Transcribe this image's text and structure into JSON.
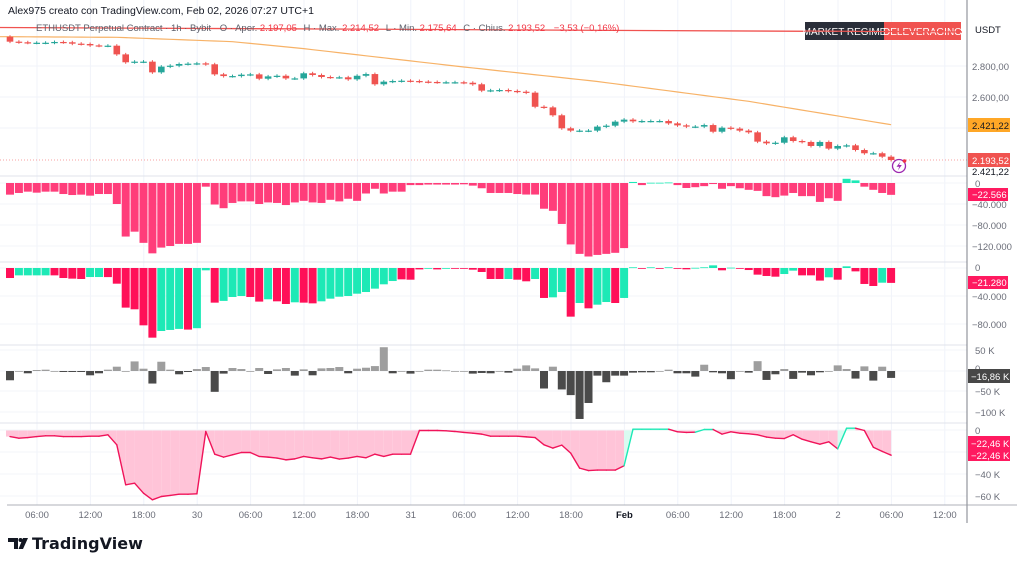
{
  "header": {
    "attribution": "Alex975 creato con TradingView.com, Feb 02, 2026 07:27 UTC+1"
  },
  "legend": {
    "symbol": "ETHUSDT Perpetual Contract · 1h · Bybit",
    "open_label": "O · Aper.",
    "open": "2.197,05",
    "high_label": "H · Max.",
    "high": "2.214,52",
    "low_label": "L · Min.",
    "low": "2.175,64",
    "close_label": "C · Chius.",
    "close": "2.193,52",
    "change": "−3,53 (−0,16%)"
  },
  "regime": {
    "label": "MARKET REGIME",
    "value": "DELEVERAGING",
    "label_color": "#2a2e39",
    "value_color": "#f05350"
  },
  "price_axis": {
    "currency": "USDT",
    "ticks": [
      "2.800,00",
      "2.600,00"
    ],
    "ma_badge": "2.421,22",
    "last_badge": "2.193,52",
    "extra_value": "2.421,22"
  },
  "pane2_axis": {
    "ticks": [
      "0",
      "−40.000",
      "−80.000",
      "−120.000"
    ],
    "badge": "−22.566"
  },
  "pane3_axis": {
    "ticks": [
      "0",
      "−40.000",
      "−80.000"
    ],
    "badge": "−21.280"
  },
  "pane4_axis": {
    "ticks": [
      "50 K",
      "0",
      "−50 K",
      "−100 K"
    ],
    "badge": "−16,86 K"
  },
  "pane5_axis": {
    "ticks": [
      "0",
      "−40 K",
      "−60 K"
    ],
    "badges": [
      "−22,46 K",
      "−22,46 K"
    ]
  },
  "time_axis": {
    "labels": [
      "06:00",
      "12:00",
      "18:00",
      "30",
      "06:00",
      "12:00",
      "18:00",
      "31",
      "06:00",
      "12:00",
      "18:00",
      "Feb",
      "06:00",
      "12:00",
      "18:00",
      "2",
      "06:00",
      "12:00"
    ]
  },
  "logo": {
    "text": "TradingView"
  },
  "colors": {
    "up": "#26a69a",
    "down": "#ef5350",
    "ma": "#f7b267",
    "trendline": "#f05350",
    "hist_pink": "#ff3d7a",
    "flow_red": "#ff1058",
    "flow_teal": "#1de9b6",
    "vol_light": "#9e9e9e",
    "vol_dark": "#4a4a4a",
    "line_red": "#f0145a",
    "fill_pink": "#ffc4d8",
    "fill_teal": "#d9fbf1"
  },
  "icons": {
    "alert": "lightning-bolt-icon"
  },
  "chart_data": [
    {
      "type": "candlestick",
      "title": "ETHUSDT Perpetual Contract · 1h · Bybit",
      "ylabel": "USDT",
      "ylim": [
        2140,
        3000
      ],
      "first_open": 2989,
      "close": [
        2957,
        2953,
        2950,
        2950,
        2950,
        2955,
        2953,
        2944,
        2942,
        2933,
        2931,
        2931,
        2875,
        2824,
        2828,
        2828,
        2759,
        2796,
        2802,
        2813,
        2815,
        2817,
        2811,
        2746,
        2735,
        2735,
        2744,
        2746,
        2718,
        2733,
        2737,
        2720,
        2720,
        2753,
        2742,
        2729,
        2727,
        2727,
        2714,
        2737,
        2748,
        2682,
        2699,
        2703,
        2705,
        2703,
        2699,
        2697,
        2695,
        2695,
        2695,
        2692,
        2682,
        2641,
        2643,
        2645,
        2639,
        2634,
        2628,
        2537,
        2533,
        2482,
        2398,
        2383,
        2383,
        2383,
        2409,
        2415,
        2441,
        2454,
        2443,
        2445,
        2445,
        2445,
        2430,
        2417,
        2409,
        2409,
        2419,
        2376,
        2402,
        2396,
        2383,
        2372,
        2312,
        2301,
        2305,
        2340,
        2316,
        2310,
        2284,
        2310,
        2267,
        2284,
        2288,
        2258,
        2237,
        2237,
        2215,
        2193.52
      ],
      "moving_average": [
        {
          "bar": 0,
          "value": 2989
        },
        {
          "bar": 12,
          "value": 2985
        },
        {
          "bar": 25,
          "value": 2957
        },
        {
          "bar": 33,
          "value": 2912
        },
        {
          "bar": 50,
          "value": 2800
        },
        {
          "bar": 66,
          "value": 2700
        },
        {
          "bar": 83,
          "value": 2572
        },
        {
          "bar": 99,
          "value": 2421.22
        }
      ],
      "last_price": 2193.52
    },
    {
      "type": "bar",
      "ylim": [
        -150000,
        10000
      ],
      "values": [
        -22200,
        -19000,
        -16500,
        -18400,
        -16500,
        -16500,
        -21000,
        -22900,
        -22200,
        -24100,
        -21000,
        -21000,
        -40000,
        -102000,
        -92700,
        -114000,
        -134000,
        -123000,
        -120000,
        -116000,
        -116000,
        -114000,
        -7000,
        -41000,
        -48000,
        -38000,
        -35000,
        -35000,
        -40000,
        -37000,
        -38000,
        -42000,
        -37000,
        -34000,
        -37000,
        -38000,
        -32000,
        -35000,
        -30000,
        -34000,
        -20000,
        -11000,
        -20000,
        -16500,
        -16500,
        -4000,
        -4000,
        -3000,
        -3000,
        -3000,
        -3000,
        -2500,
        -5000,
        -10000,
        -19000,
        -19000,
        -19000,
        -21000,
        -22000,
        -22000,
        -49000,
        -53000,
        -78000,
        -117000,
        -135000,
        -140000,
        -137000,
        -135000,
        -133000,
        -124000,
        2000,
        -4000,
        500,
        500,
        1000,
        -4000,
        -9500,
        -8000,
        -6000,
        -2000,
        -11000,
        -6000,
        -10000,
        -13000,
        -15000,
        -25000,
        -27000,
        -24000,
        -19000,
        -25000,
        -25000,
        -36000,
        -29000,
        -34000,
        8000,
        5000,
        -7000,
        -13000,
        -19000,
        -22566
      ]
    },
    {
      "type": "bar",
      "ylim": [
        -110000,
        5000
      ],
      "values": [
        -14300,
        -10500,
        -10500,
        -10500,
        -10500,
        -10500,
        -14300,
        -15200,
        -15700,
        -12900,
        -12900,
        -13000,
        -22400,
        -56600,
        -59000,
        -81900,
        -99500,
        -90000,
        -88500,
        -87000,
        -88000,
        -86000,
        -3300,
        -49500,
        -47000,
        -41400,
        -40000,
        -41400,
        -48000,
        -44700,
        -47600,
        -51400,
        -49000,
        -49500,
        -50500,
        -47600,
        -43800,
        -41000,
        -40000,
        -36700,
        -34300,
        -29500,
        -23300,
        -18600,
        -16200,
        -16700,
        -2000,
        -1000,
        -2000,
        -1000,
        -1000,
        -1000,
        -2400,
        -5700,
        -15700,
        -15700,
        -15700,
        -16700,
        -19000,
        -15700,
        -42800,
        -41900,
        -34300,
        -69500,
        -50000,
        -57600,
        -52400,
        -48600,
        -50000,
        -42800,
        1000,
        -500,
        1000,
        -300,
        1000,
        -500,
        -1900,
        300,
        1000,
        3800,
        -3300,
        500,
        -1000,
        -2900,
        -9500,
        -11400,
        -12400,
        -8600,
        -3800,
        -10500,
        -10500,
        -18000,
        -13300,
        -16700,
        2400,
        -4800,
        -22800,
        -25700,
        -21000,
        -21280
      ],
      "direction": [
        "r",
        "g",
        "g",
        "g",
        "g",
        "r",
        "r",
        "r",
        "r",
        "g",
        "g",
        "r",
        "r",
        "r",
        "r",
        "r",
        "r",
        "g",
        "g",
        "g",
        "r",
        "g",
        "g",
        "r",
        "g",
        "g",
        "g",
        "r",
        "r",
        "g",
        "r",
        "r",
        "g",
        "r",
        "r",
        "g",
        "g",
        "g",
        "g",
        "g",
        "g",
        "g",
        "g",
        "g",
        "r",
        "r",
        "r",
        "g",
        "r",
        "g",
        "r",
        "r",
        "r",
        "r",
        "r",
        "r",
        "g",
        "r",
        "r",
        "g",
        "r",
        "g",
        "g",
        "r",
        "g",
        "r",
        "g",
        "g",
        "r",
        "g",
        "g",
        "r",
        "g",
        "r",
        "g",
        "r",
        "r",
        "g",
        "g",
        "g",
        "r",
        "g",
        "r",
        "r",
        "r",
        "r",
        "r",
        "g",
        "g",
        "r",
        "r",
        "r",
        "g",
        "r",
        "g",
        "r",
        "r",
        "r",
        "g",
        "r"
      ]
    },
    {
      "type": "bar",
      "ylim": [
        -125000,
        65000
      ],
      "values": [
        -22600,
        0,
        -5600,
        2400,
        3200,
        0,
        -2400,
        -2400,
        -2400,
        -10500,
        -5600,
        3200,
        10500,
        0,
        23400,
        5600,
        -30600,
        22600,
        3200,
        -8000,
        -2400,
        4800,
        9700,
        -50800,
        -6400,
        7300,
        4800,
        0,
        7300,
        -7300,
        4000,
        7300,
        -11300,
        4000,
        -10500,
        6400,
        7300,
        9700,
        -5600,
        5600,
        8000,
        12000,
        58000,
        -5600,
        0,
        -6400,
        0,
        3200,
        3200,
        1600,
        0,
        0,
        -6400,
        -4800,
        -5600,
        0,
        -4000,
        5600,
        13700,
        6400,
        -42700,
        10500,
        -45000,
        -58800,
        -117000,
        -78000,
        -11300,
        -27400,
        -11300,
        -11300,
        -4000,
        -3200,
        -3200,
        0,
        3200,
        -5600,
        -5600,
        -13700,
        15300,
        -3200,
        -5600,
        -20000,
        0,
        -4000,
        24000,
        -21800,
        -8000,
        4800,
        -19300,
        -4000,
        -10500,
        -3200,
        0,
        13700,
        4800,
        -18500,
        11300,
        -23400,
        10500,
        -16860
      ]
    },
    {
      "type": "area",
      "ylim": [
        -65000,
        3000
      ],
      "values": [
        -5500,
        -7000,
        -6400,
        -5500,
        -4800,
        -4800,
        -5500,
        -5500,
        -5500,
        -5200,
        -5200,
        -3900,
        -13000,
        -49400,
        -47900,
        -57000,
        -63000,
        -60000,
        -59000,
        -57900,
        -57900,
        -57600,
        -900,
        -21500,
        -24200,
        -22100,
        -20000,
        -20000,
        -23600,
        -24200,
        -25100,
        -26700,
        -25800,
        -23600,
        -24800,
        -25800,
        -24200,
        -26000,
        -25100,
        -23600,
        -24800,
        -21500,
        -23600,
        -21500,
        -21500,
        -21500,
        0,
        0,
        0,
        -300,
        -900,
        -1800,
        -2400,
        -3300,
        -5200,
        -5200,
        -5200,
        -5200,
        -5800,
        -6400,
        -13000,
        -16000,
        -13300,
        -20600,
        -34200,
        -36400,
        -36000,
        -36000,
        -36000,
        -32000,
        1200,
        1200,
        1200,
        1200,
        1200,
        -1200,
        -1800,
        -1500,
        900,
        900,
        -3300,
        -1200,
        -2400,
        -3000,
        -3900,
        -6000,
        -7000,
        -7300,
        -3900,
        -7900,
        -10300,
        -12400,
        -10300,
        -16700,
        2100,
        2100,
        0,
        -15200,
        -19000,
        -22460
      ]
    }
  ]
}
